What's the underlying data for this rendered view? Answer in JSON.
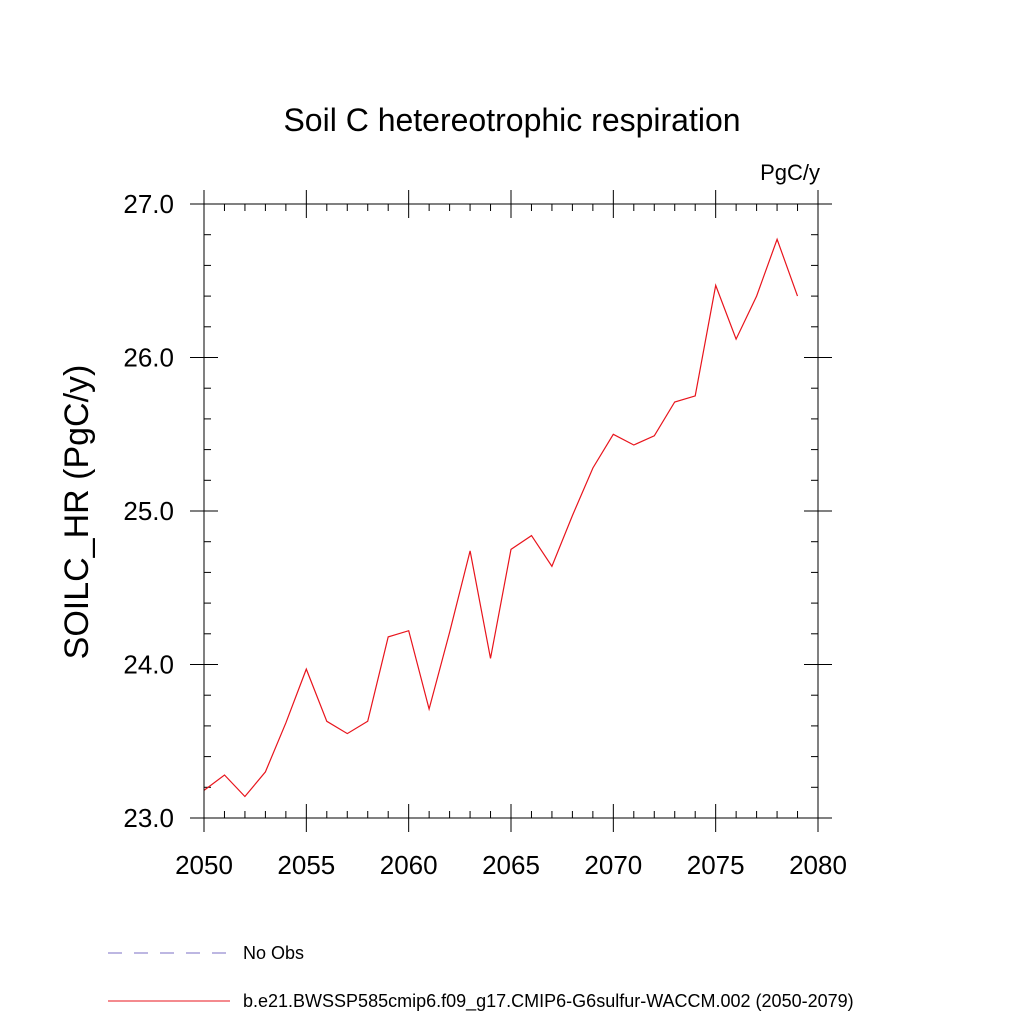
{
  "chart_data": {
    "type": "line",
    "title": "Soil C hetereotrophic respiration",
    "units_label": "PgC/y",
    "ylabel": "SOILC_HR  (PgC/y)",
    "xlabel": "",
    "xlim": [
      2050,
      2080
    ],
    "ylim": [
      23.0,
      27.0
    ],
    "x_ticks": [
      2050,
      2055,
      2060,
      2065,
      2070,
      2075,
      2080
    ],
    "x_tick_labels": [
      "2050",
      "2055",
      "2060",
      "2065",
      "2070",
      "2075",
      "2080"
    ],
    "y_ticks": [
      23.0,
      24.0,
      25.0,
      26.0,
      27.0
    ],
    "y_tick_labels": [
      "23.0",
      "24.0",
      "25.0",
      "26.0",
      "27.0"
    ],
    "x_minor_step": 1,
    "y_minor_step": 0.2,
    "grid": false,
    "legend_position": "bottom-left, below plot",
    "series": [
      {
        "name": "b.e21.BWSSP585cmip6.f09_g17.CMIP6-G6sulfur-WACCM.002 (2050-2079)",
        "color": "#e8141c",
        "x": [
          2050,
          2051,
          2052,
          2053,
          2054,
          2055,
          2056,
          2057,
          2058,
          2059,
          2060,
          2061,
          2062,
          2063,
          2064,
          2065,
          2066,
          2067,
          2068,
          2069,
          2070,
          2071,
          2072,
          2073,
          2074,
          2075,
          2076,
          2077,
          2078,
          2079
        ],
        "y": [
          23.18,
          23.28,
          23.14,
          23.3,
          23.62,
          23.97,
          23.63,
          23.55,
          23.63,
          24.18,
          24.22,
          23.71,
          24.21,
          24.74,
          24.04,
          24.75,
          24.84,
          24.64,
          24.97,
          25.28,
          25.5,
          25.43,
          25.49,
          25.71,
          25.75,
          26.47,
          26.12,
          26.4,
          26.77,
          26.4
        ]
      }
    ],
    "legend": [
      {
        "label": "No Obs",
        "style": "dashed",
        "color": "#7b6fc4"
      },
      {
        "label": "b.e21.BWSSP585cmip6.f09_g17.CMIP6-G6sulfur-WACCM.002 (2050-2079)",
        "style": "solid",
        "color": "#e8141c"
      }
    ]
  }
}
